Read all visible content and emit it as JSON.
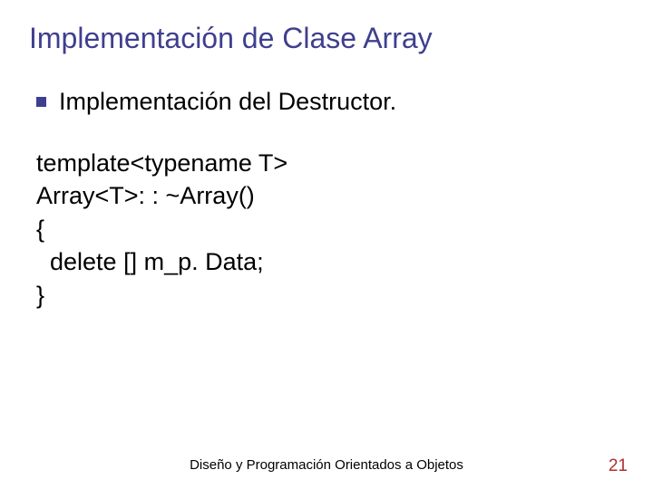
{
  "slide": {
    "title": "Implementación de Clase Array",
    "title_color": "#3f3f8f",
    "bullet": {
      "marker_color": "#3f3f8f",
      "text": "Implementación del Destructor.",
      "text_color": "#000000"
    },
    "code": {
      "lines": "template<typename T>\nArray<T>: : ~Array()\n{\n  delete [] m_p. Data;\n}",
      "text_color": "#000000"
    },
    "footer": {
      "text": "Diseño y Programación Orientados a Objetos",
      "color": "#000000"
    },
    "page_number": {
      "value": "21",
      "color": "#b03030"
    },
    "background_color": "#ffffff"
  }
}
